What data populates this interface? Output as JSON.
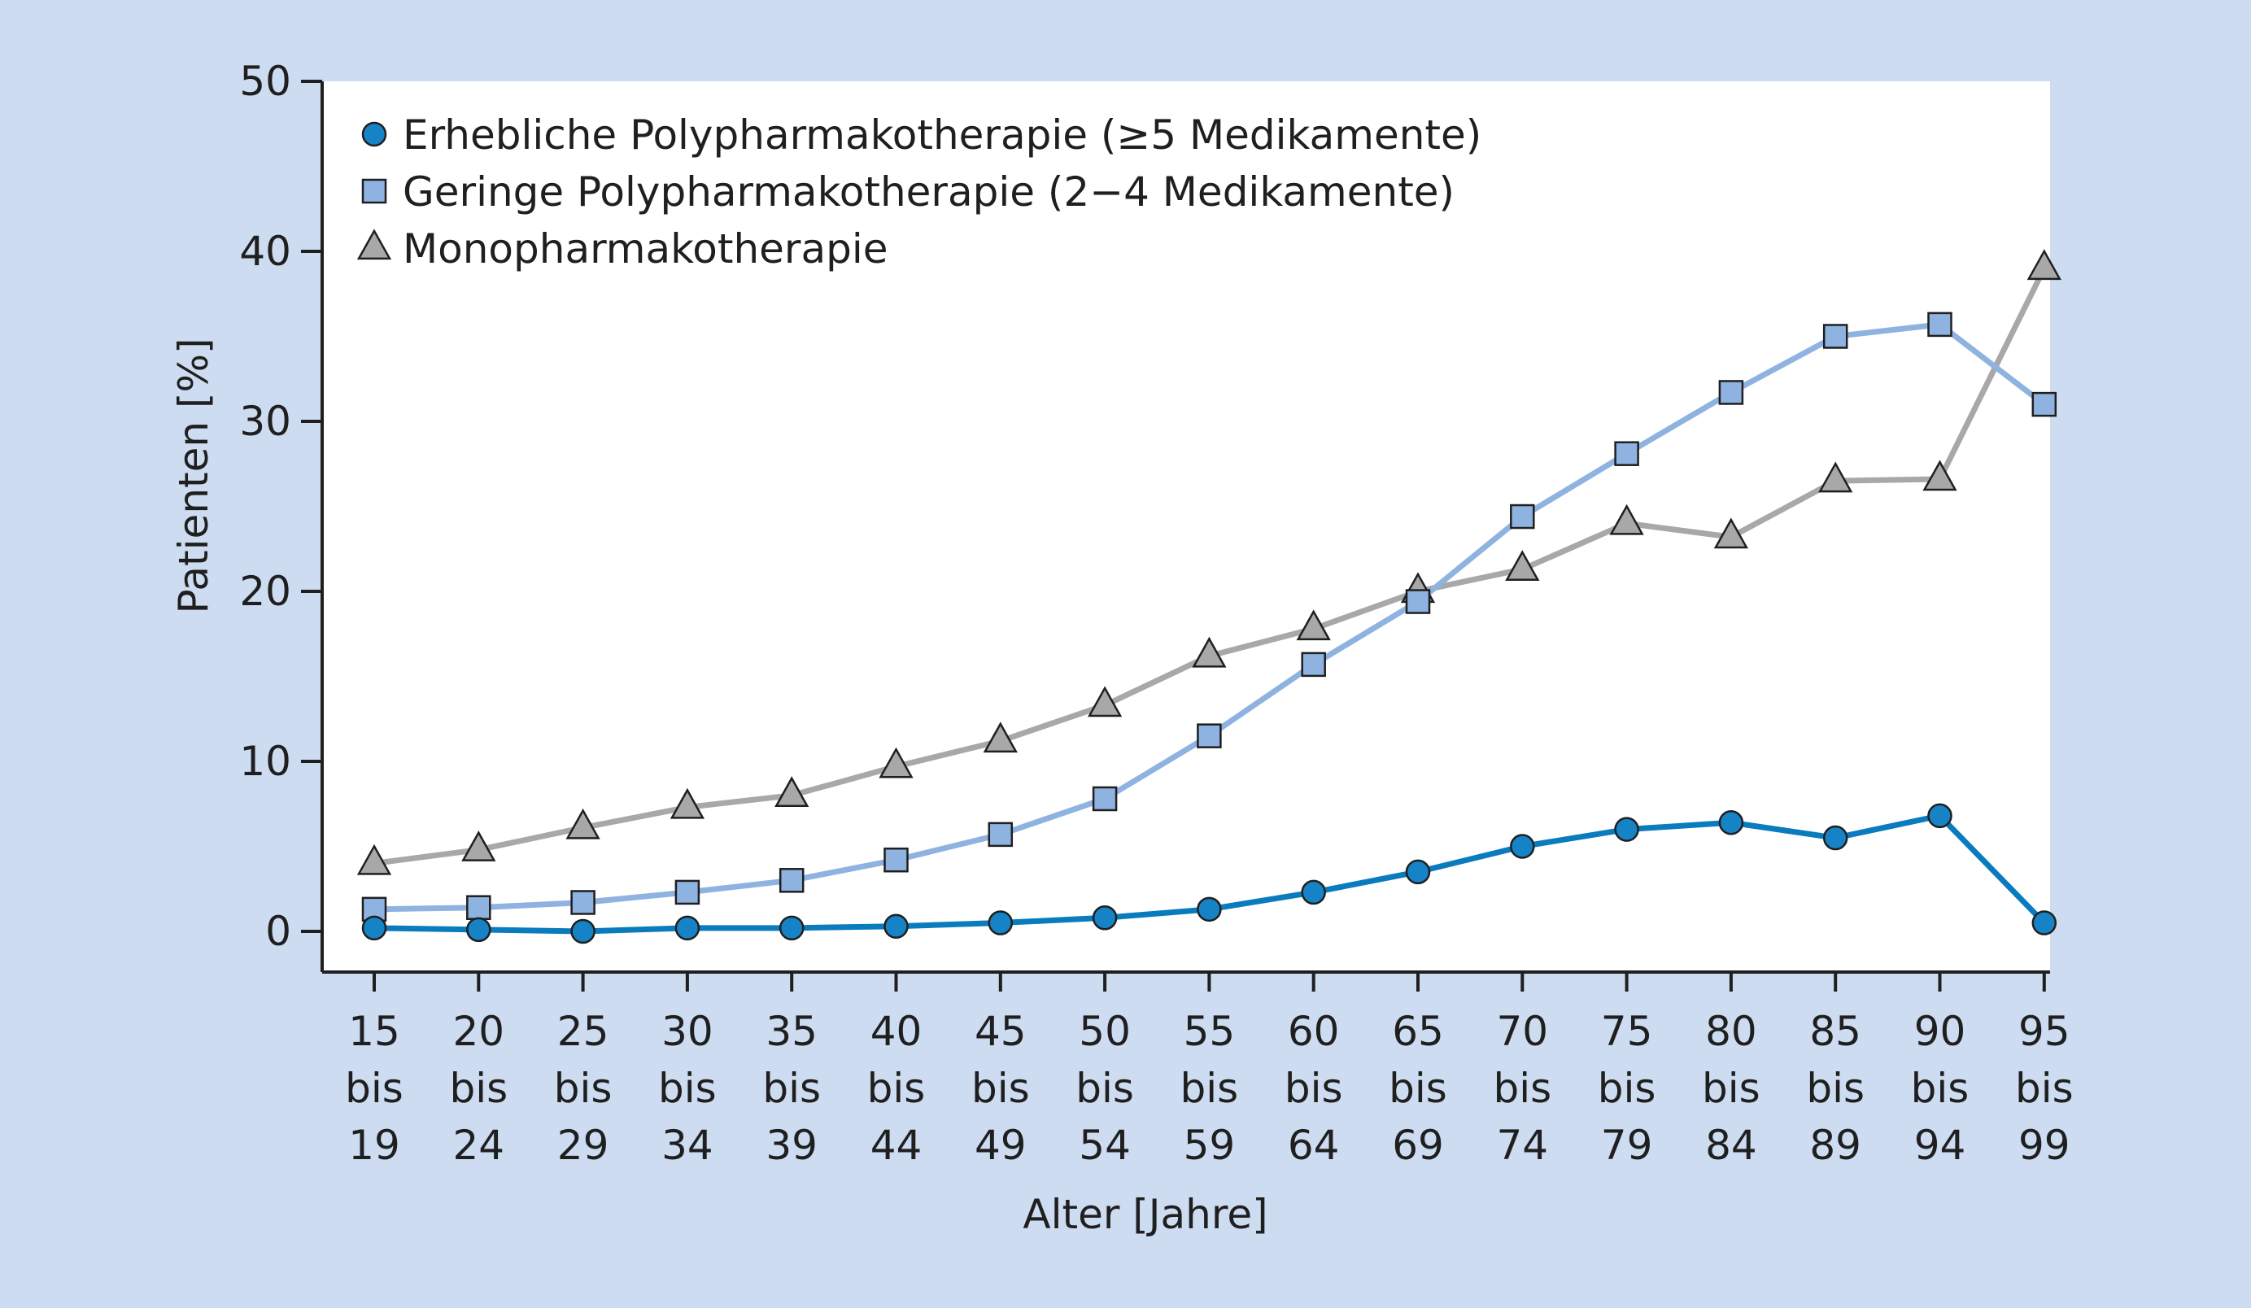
{
  "chart_data": {
    "type": "line",
    "xlabel": "Alter [Jahre]",
    "ylabel": "Patienten [%]",
    "ylim": [
      0,
      50
    ],
    "yticks": [
      0,
      10,
      20,
      30,
      40,
      50
    ],
    "grid": false,
    "legend_position": "top-left",
    "categories": [
      [
        "15",
        "bis",
        "19"
      ],
      [
        "20",
        "bis",
        "24"
      ],
      [
        "25",
        "bis",
        "29"
      ],
      [
        "30",
        "bis",
        "34"
      ],
      [
        "35",
        "bis",
        "39"
      ],
      [
        "40",
        "bis",
        "44"
      ],
      [
        "45",
        "bis",
        "49"
      ],
      [
        "50",
        "bis",
        "54"
      ],
      [
        "55",
        "bis",
        "59"
      ],
      [
        "60",
        "bis",
        "64"
      ],
      [
        "65",
        "bis",
        "69"
      ],
      [
        "70",
        "bis",
        "74"
      ],
      [
        "75",
        "bis",
        "79"
      ],
      [
        "80",
        "bis",
        "84"
      ],
      [
        "85",
        "bis",
        "89"
      ],
      [
        "90",
        "bis",
        "94"
      ],
      [
        "95",
        "bis",
        "99"
      ]
    ],
    "series": [
      {
        "name": "Erhebliche Polypharmakotherapie (≥5 Medikamente)",
        "marker": "circle",
        "line_color": "#0a7bbd",
        "marker_color": "#1583c6",
        "values": [
          0.2,
          0.1,
          0.0,
          0.2,
          0.2,
          0.3,
          0.5,
          0.8,
          1.3,
          2.3,
          3.5,
          5.0,
          6.0,
          6.4,
          5.5,
          6.8,
          0.5
        ]
      },
      {
        "name": "Geringe Polypharmakotherapie (2−4 Medikamente)",
        "marker": "square",
        "line_color": "#8fb3e0",
        "marker_color": "#8fb3e0",
        "values": [
          1.3,
          1.4,
          1.7,
          2.3,
          3.0,
          4.2,
          5.7,
          7.8,
          11.5,
          15.7,
          19.4,
          24.4,
          28.1,
          31.7,
          35.0,
          35.7,
          31.0
        ]
      },
      {
        "name": "Monopharmakotherapie",
        "marker": "triangle",
        "line_color": "#a8a8a8",
        "marker_color": "#a8a8a8",
        "values": [
          4.0,
          4.8,
          6.1,
          7.3,
          8.0,
          9.7,
          11.2,
          13.3,
          16.2,
          17.8,
          20.0,
          21.3,
          24.0,
          23.2,
          26.5,
          26.6,
          39.0
        ]
      }
    ]
  }
}
